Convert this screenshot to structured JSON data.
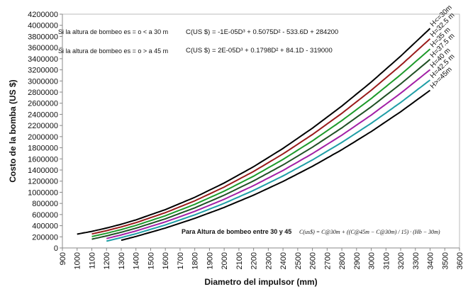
{
  "chart_data": {
    "type": "line",
    "title": "",
    "xlabel": "Diametro del impulsor (mm)",
    "ylabel": "Costo de la bomba (US $)",
    "xlim": [
      900,
      3600
    ],
    "ylim": [
      0,
      4200000
    ],
    "xticks": [
      900,
      1000,
      1100,
      1200,
      1300,
      1400,
      1500,
      1600,
      1700,
      1800,
      1900,
      2000,
      2100,
      2200,
      2300,
      2400,
      2500,
      2600,
      2700,
      2800,
      2900,
      3000,
      3100,
      3200,
      3300,
      3400,
      3500,
      3600
    ],
    "yticks": [
      0,
      200000,
      400000,
      600000,
      800000,
      1000000,
      1200000,
      1400000,
      1600000,
      1800000,
      2000000,
      2200000,
      2400000,
      2600000,
      2800000,
      3000000,
      3200000,
      3400000,
      3600000,
      3800000,
      4000000,
      4200000
    ],
    "grid": false,
    "x": [
      1000,
      1100,
      1200,
      1300,
      1400,
      1600,
      1800,
      2000,
      2200,
      2400,
      2600,
      2800,
      3000,
      3200,
      3400
    ],
    "base_c30": [
      248100,
      298005,
      357400,
      426225,
      504420,
      688680,
      909700,
      1167000,
      1460100,
      1788520,
      2151780,
      2549400,
      2980900,
      3445800,
      3943620
    ],
    "base_c45": [
      -35100,
      17688,
      75392,
      138132,
      206028,
      357768,
      531572,
      728400,
      949212,
      1194968,
      1466628,
      1765152,
      2091500,
      2446632,
      2831508
    ],
    "series": [
      {
        "name": "H<=30m",
        "h": 30,
        "x_start": 1000,
        "color": "#000000"
      },
      {
        "name": "H=32.5 m",
        "h": 32.5,
        "x_start": 1100,
        "color": "#9a1b1b"
      },
      {
        "name": "H=35 m",
        "h": 35,
        "x_start": 1100,
        "color": "#1d9a2a"
      },
      {
        "name": "H=37.5 m",
        "h": 37.5,
        "x_start": 1100,
        "color": "#1f4f24"
      },
      {
        "name": "H=40 m",
        "h": 40,
        "x_start": 1200,
        "color": "#a21fa6"
      },
      {
        "name": "H=42.5 m",
        "h": 42.5,
        "x_start": 1200,
        "color": "#1f9ea6"
      },
      {
        "name": "H>=45m",
        "h": 45,
        "x_start": 1300,
        "color": "#000000"
      }
    ],
    "annotations": {
      "cond_low": "Si la altura de bombeo es = o < a 30 m",
      "cond_high": "Si la altura de bombeo es = o > a 45 m",
      "eq_low": "C(US $) = -1E-05D³ + 0.5075D² - 533.6D + 284200",
      "eq_high": "C(US $) = 2E-05D³ + 0.1798D² + 84.1D - 319000",
      "between_label": "Para Altura de bombeo entre 30 y 45",
      "between_eq": "C(us$) = C@30m + ((C@45m − C@30m) / 15) · (Hb − 30m)"
    }
  }
}
